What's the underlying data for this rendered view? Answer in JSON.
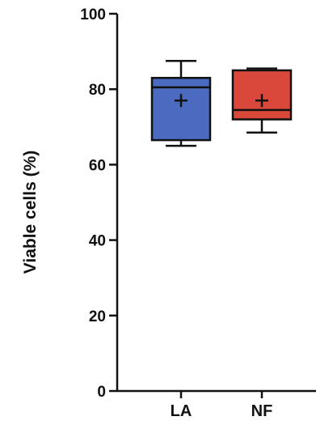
{
  "chart_data": {
    "type": "box",
    "ylabel": "Viable cells (%)",
    "xlabel": "",
    "title": "",
    "ylim": [
      0,
      100
    ],
    "yticks": [
      0,
      20,
      40,
      60,
      80,
      100
    ],
    "categories": [
      "LA",
      "NF"
    ],
    "boxes": [
      {
        "category": "LA",
        "min": 65,
        "q1": 66.5,
        "median": 80.5,
        "q3": 83,
        "max": 87.5,
        "mean": 77,
        "color": "#4a6bbf"
      },
      {
        "category": "NF",
        "min": 68.5,
        "q1": 72,
        "median": 74.5,
        "q3": 85,
        "max": 85.5,
        "mean": 77,
        "color": "#d9483b"
      }
    ],
    "grid": false,
    "axis_color": "#111111"
  }
}
